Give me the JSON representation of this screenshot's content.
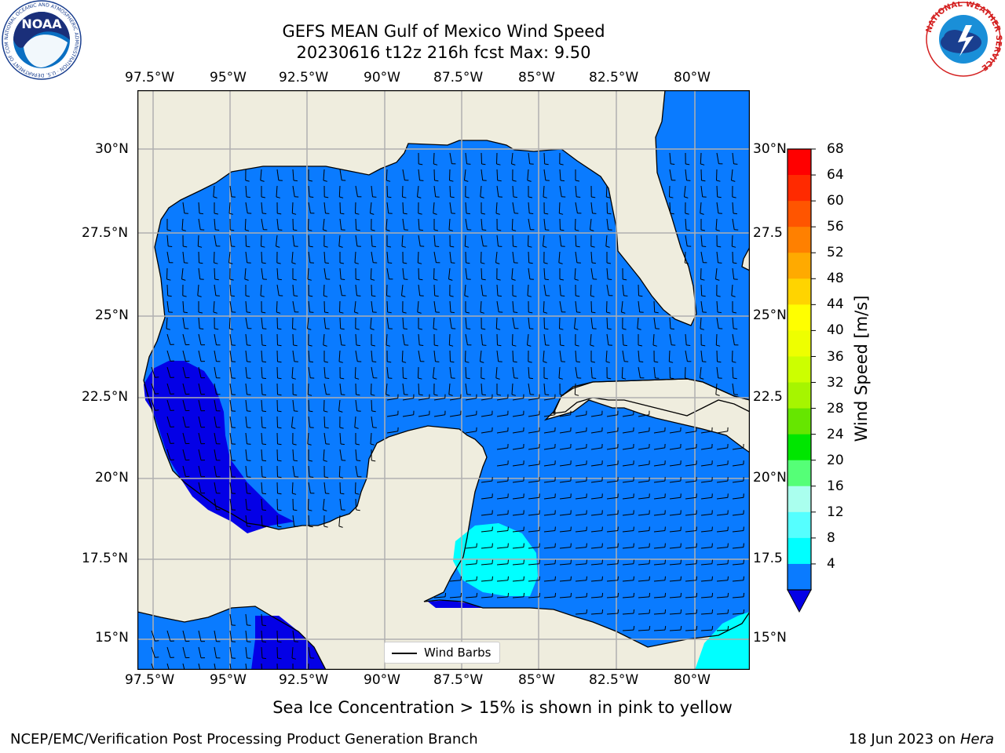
{
  "header": {
    "title_line1": "GEFS MEAN Gulf of Mexico Wind Speed",
    "title_line2": "20230616 t12z 216h fcst   Max: 9.50"
  },
  "logos": {
    "noaa_text": "NOAA",
    "noaa_ring": "NATIONAL OCEANIC AND ATMOSPHERIC ADMINISTRATION · U.S. DEPARTMENT OF COMMERCE",
    "nws_ring": "NATIONAL WEATHER SERVICE"
  },
  "map": {
    "lon_labels": [
      "97.5°W",
      "95°W",
      "92.5°W",
      "90°W",
      "87.5°W",
      "85°W",
      "82.5°W",
      "80°W"
    ],
    "lat_labels_left": [
      "30°N",
      "27.5°N",
      "25°N",
      "22.5°N",
      "20°N",
      "17.5°N",
      "15°N"
    ],
    "lat_labels_right": [
      "30°N",
      "27.5",
      "25°N",
      "22.5",
      "20°N",
      "17.5",
      "15°N"
    ],
    "legend_label": "Wind Barbs",
    "colors": {
      "land": "#efedde",
      "ocean_4_8": "#0a7bff",
      "ocean_below_4": "#0400e6",
      "ocean_8_12": "#00ffff",
      "grid": "#b0b0b0"
    }
  },
  "colorbar": {
    "label": "Wind Speed [m/s]",
    "ticks": [
      "68",
      "64",
      "60",
      "56",
      "52",
      "48",
      "44",
      "40",
      "36",
      "32",
      "28",
      "24",
      "20",
      "16",
      "12",
      "8",
      "4"
    ],
    "colors_top_to_bottom": [
      "#ff0000",
      "#ff2a00",
      "#ff5500",
      "#ff8000",
      "#ffaa00",
      "#ffd400",
      "#ffff00",
      "#eeff00",
      "#ccff00",
      "#a6f500",
      "#66e600",
      "#00e600",
      "#55ff77",
      "#aaffee",
      "#55ffff",
      "#00ffff",
      "#0a7bff"
    ],
    "extend_color": "#0400e6"
  },
  "footer": {
    "caption": "Sea Ice Concentration > 15% is shown in pink to yellow",
    "credit": "NCEP/EMC/Verification Post Processing Product Generation Branch",
    "date": "18 Jun 2023 on ",
    "machine": "Hera"
  }
}
